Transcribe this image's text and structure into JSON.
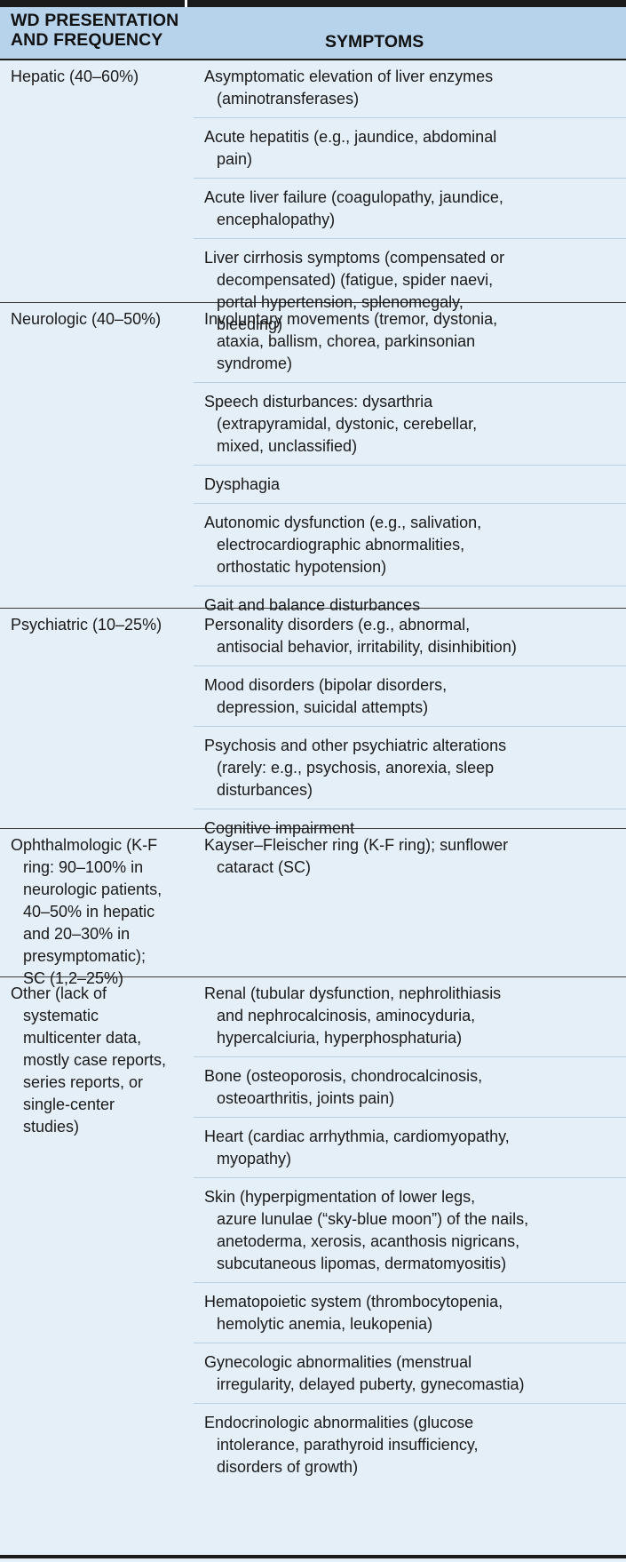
{
  "header": {
    "col1": "WD PRESENTATION\nAND FREQUENCY",
    "col2": "SYMPTOMS"
  },
  "rows": [
    {
      "category": [
        "Hepatic (40–60%)"
      ],
      "symptoms": [
        [
          "Asymptomatic elevation of liver enzymes",
          "(aminotransferases)"
        ],
        [
          "Acute hepatitis (e.g., jaundice, abdominal",
          "pain)"
        ],
        [
          "Acute liver failure (coagulopathy, jaundice,",
          "encephalopathy)"
        ],
        [
          "Liver cirrhosis symptoms (compensated or",
          "decompensated) (fatigue, spider naevi,",
          "portal hypertension, splenomegaly,",
          "bleeding)"
        ]
      ]
    },
    {
      "category": [
        "Neurologic (40–50%)"
      ],
      "symptoms": [
        [
          "Involuntary movements (tremor, dystonia,",
          "ataxia, ballism, chorea, parkinsonian",
          "syndrome)"
        ],
        [
          "Speech disturbances: dysarthria",
          "(extrapyramidal, dystonic, cerebellar,",
          "mixed, unclassified)"
        ],
        [
          "Dysphagia"
        ],
        [
          "Autonomic dysfunction (e.g., salivation,",
          "electrocardiographic abnormalities,",
          "orthostatic hypotension)"
        ],
        [
          "Gait and balance disturbances"
        ]
      ]
    },
    {
      "category": [
        "Psychiatric (10–25%)"
      ],
      "symptoms": [
        [
          "Personality disorders (e.g., abnormal,",
          "antisocial behavior, irritability, disinhibition)"
        ],
        [
          "Mood disorders (bipolar disorders,",
          "depression, suicidal attempts)"
        ],
        [
          "Psychosis and other psychiatric alterations",
          "(rarely: e.g., psychosis, anorexia, sleep",
          "disturbances)"
        ],
        [
          "Cognitive impairment"
        ]
      ]
    },
    {
      "category": [
        "Ophthalmologic (K-F",
        "ring: 90–100% in",
        "neurologic patients,",
        "40–50% in hepatic",
        "and 20–30% in",
        "presymptomatic);",
        "SC (1,2–25%)"
      ],
      "symptoms": [
        [
          "Kayser–Fleischer ring (K-F ring); sunflower",
          "cataract (SC)"
        ]
      ]
    },
    {
      "category": [
        "Other (lack of",
        "systematic",
        "multicenter data,",
        "mostly case reports,",
        "series reports, or",
        "single-center",
        "studies)"
      ],
      "symptoms": [
        [
          "Renal (tubular dysfunction, nephrolithiasis",
          "and nephrocalcinosis, aminocyduria,",
          "hypercalciuria, hyperphosphaturia)"
        ],
        [
          "Bone (osteoporosis, chondrocalcinosis,",
          "osteoarthritis, joints pain)"
        ],
        [
          "Heart (cardiac arrhythmia, cardiomyopathy,",
          "myopathy)"
        ],
        [
          "Skin (hyperpigmentation of lower legs,",
          "azure lunulae (“sky-blue moon”) of the nails,",
          "anetoderma, xerosis, acanthosis nigricans,",
          "subcutaneous lipomas, dermatomyositis)"
        ],
        [
          "Hematopoietic system (thrombocytopenia,",
          "hemolytic anemia, leukopenia)"
        ],
        [
          "Gynecologic abnormalities (menstrual",
          "irregularity, delayed puberty, gynecomastia)"
        ],
        [
          "Endocrinologic abnormalities (glucose",
          "intolerance, parathyroid insufficiency,",
          "disorders of growth)"
        ]
      ]
    }
  ]
}
